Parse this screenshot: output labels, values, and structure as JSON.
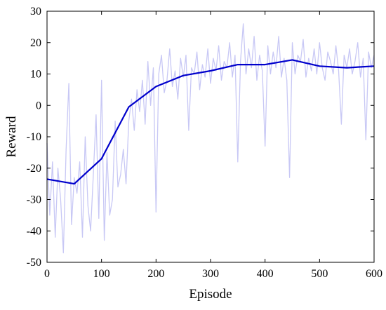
{
  "chart_data": {
    "type": "line",
    "xlabel": "Episode",
    "ylabel": "Reward",
    "xlim": [
      0,
      600
    ],
    "ylim": [
      -50,
      30
    ],
    "xticks": [
      0,
      100,
      200,
      300,
      400,
      500,
      600
    ],
    "yticks": [
      -50,
      -40,
      -30,
      -20,
      -10,
      0,
      10,
      20,
      30
    ],
    "grid": false,
    "legend": "none",
    "series": [
      {
        "role": "smoothed",
        "color": "#0000cc",
        "x": [
          0,
          50,
          100,
          150,
          200,
          250,
          300,
          350,
          400,
          450,
          500,
          550,
          600
        ],
        "y": [
          -23.5,
          -25,
          -17,
          -0.5,
          6,
          9.5,
          11,
          13,
          13,
          14.5,
          12.5,
          12,
          12.5
        ]
      },
      {
        "role": "raw",
        "color": "#c8c8f5",
        "x": [
          0,
          5,
          10,
          15,
          20,
          25,
          30,
          35,
          40,
          45,
          50,
          55,
          60,
          65,
          70,
          75,
          80,
          85,
          90,
          95,
          100,
          105,
          110,
          115,
          120,
          125,
          130,
          135,
          140,
          145,
          150,
          155,
          160,
          165,
          170,
          175,
          180,
          185,
          190,
          195,
          200,
          205,
          210,
          215,
          220,
          225,
          230,
          235,
          240,
          245,
          250,
          255,
          260,
          265,
          270,
          275,
          280,
          285,
          290,
          295,
          300,
          305,
          310,
          315,
          320,
          325,
          330,
          335,
          340,
          345,
          350,
          355,
          360,
          365,
          370,
          375,
          380,
          385,
          390,
          395,
          400,
          405,
          410,
          415,
          420,
          425,
          430,
          435,
          440,
          445,
          450,
          455,
          460,
          465,
          470,
          475,
          480,
          485,
          490,
          495,
          500,
          505,
          510,
          515,
          520,
          525,
          530,
          535,
          540,
          545,
          550,
          555,
          560,
          565,
          570,
          575,
          580,
          585,
          590,
          595,
          600
        ],
        "y": [
          -12,
          -35,
          -18,
          -42,
          -20,
          -30,
          -47,
          -14,
          7,
          -38,
          -23,
          -28,
          -18,
          -42,
          -10,
          -32,
          -40,
          -22,
          -3,
          -36,
          8,
          -43,
          -15,
          -35,
          -30,
          -5,
          -26,
          -22,
          -14,
          -25,
          -5,
          2,
          -8,
          5,
          -2,
          8,
          -6,
          14,
          0,
          12,
          -34,
          10,
          16,
          4,
          8,
          18,
          6,
          11,
          2,
          15,
          9,
          16,
          -8,
          12,
          10,
          17,
          5,
          13,
          9,
          18,
          7,
          15,
          11,
          19,
          8,
          14,
          12,
          20,
          9,
          16,
          -18,
          14,
          26,
          10,
          18,
          12,
          22,
          8,
          16,
          11,
          -13,
          19,
          10,
          17,
          12,
          22,
          9,
          15,
          8,
          -23,
          20,
          10,
          16,
          14,
          21,
          9,
          15,
          11,
          18,
          10,
          20,
          12,
          8,
          17,
          14,
          10,
          19,
          11,
          -6,
          16,
          12,
          18,
          10,
          14,
          20,
          9,
          15,
          -11,
          17,
          12,
          16
        ]
      }
    ]
  }
}
